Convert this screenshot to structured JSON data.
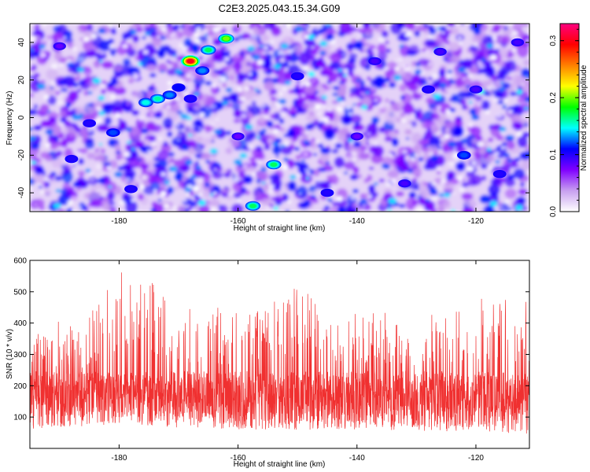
{
  "title": "C2E3.2025.043.15.34.G09",
  "chart_data": [
    {
      "type": "heatmap",
      "xlabel": "Height of straight line (km)",
      "ylabel": "Frequency (Hz)",
      "xlim": [
        -195,
        -111
      ],
      "ylim": [
        -50,
        50
      ],
      "xticks": [
        -180,
        -160,
        -140,
        -120
      ],
      "yticks": [
        -40,
        -20,
        0,
        20,
        40
      ],
      "colorbar": {
        "label": "Normalized spectral amplitude",
        "range": [
          0.0,
          0.33
        ],
        "ticks": [
          "0.0",
          "0.1",
          "0.2",
          "0.3"
        ],
        "tick_values": [
          0.0,
          0.1,
          0.2,
          0.3
        ],
        "colors": [
          "#ffffff",
          "#c8a0f0",
          "#8000ff",
          "#0000ff",
          "#00ffff",
          "#00ff00",
          "#ffff00",
          "#ff8000",
          "#ff0000",
          "#ff0080"
        ]
      },
      "hotspots": [
        {
          "x": -175.5,
          "y": 8,
          "v": 0.15
        },
        {
          "x": -173.5,
          "y": 10,
          "v": 0.16
        },
        {
          "x": -171.5,
          "y": 12,
          "v": 0.13
        },
        {
          "x": -168,
          "y": 30,
          "v": 0.3
        },
        {
          "x": -165,
          "y": 36,
          "v": 0.17
        },
        {
          "x": -162,
          "y": 42,
          "v": 0.2
        },
        {
          "x": -181,
          "y": -8,
          "v": 0.12
        },
        {
          "x": -157.5,
          "y": -47,
          "v": 0.17
        },
        {
          "x": -154,
          "y": -25,
          "v": 0.17
        },
        {
          "x": -166,
          "y": 25,
          "v": 0.13
        },
        {
          "x": -170,
          "y": 16,
          "v": 0.11
        },
        {
          "x": -168,
          "y": 10,
          "v": 0.1
        },
        {
          "x": -185,
          "y": -3,
          "v": 0.1
        },
        {
          "x": -188,
          "y": -22,
          "v": 0.1
        },
        {
          "x": -178,
          "y": -38,
          "v": 0.1
        },
        {
          "x": -145,
          "y": -40,
          "v": 0.1
        },
        {
          "x": -150,
          "y": 22,
          "v": 0.1
        },
        {
          "x": -137,
          "y": 30,
          "v": 0.09
        },
        {
          "x": -128,
          "y": 15,
          "v": 0.1
        },
        {
          "x": -122,
          "y": -20,
          "v": 0.12
        },
        {
          "x": -120,
          "y": 15,
          "v": 0.09
        },
        {
          "x": -116,
          "y": -30,
          "v": 0.1
        },
        {
          "x": -126,
          "y": 35,
          "v": 0.09
        },
        {
          "x": -140,
          "y": -10,
          "v": 0.08
        },
        {
          "x": -132,
          "y": -35,
          "v": 0.09
        },
        {
          "x": -113,
          "y": 40,
          "v": 0.09
        },
        {
          "x": -190,
          "y": 38,
          "v": 0.08
        },
        {
          "x": -160,
          "y": -10,
          "v": 0.08
        }
      ]
    },
    {
      "type": "line",
      "xlabel": "Height of straight line (km)",
      "ylabel": "SNR (10 * v/v)",
      "xlim": [
        -195,
        -111
      ],
      "ylim": [
        0,
        600
      ],
      "xticks": [
        -180,
        -160,
        -140,
        -120
      ],
      "yticks": [
        100,
        200,
        300,
        400,
        500,
        600
      ],
      "color": "#f03030",
      "baseline": 170,
      "noise_envelope": [
        {
          "x": -195,
          "min": 60,
          "max": 400
        },
        {
          "x": -185,
          "min": 70,
          "max": 420
        },
        {
          "x": -180,
          "min": 80,
          "max": 600
        },
        {
          "x": -176,
          "min": 75,
          "max": 560
        },
        {
          "x": -170,
          "min": 60,
          "max": 470
        },
        {
          "x": -160,
          "min": 60,
          "max": 440
        },
        {
          "x": -150,
          "min": 60,
          "max": 520
        },
        {
          "x": -140,
          "min": 60,
          "max": 430
        },
        {
          "x": -130,
          "min": 55,
          "max": 440
        },
        {
          "x": -120,
          "min": 55,
          "max": 490
        },
        {
          "x": -111,
          "min": 40,
          "max": 470
        }
      ]
    }
  ]
}
